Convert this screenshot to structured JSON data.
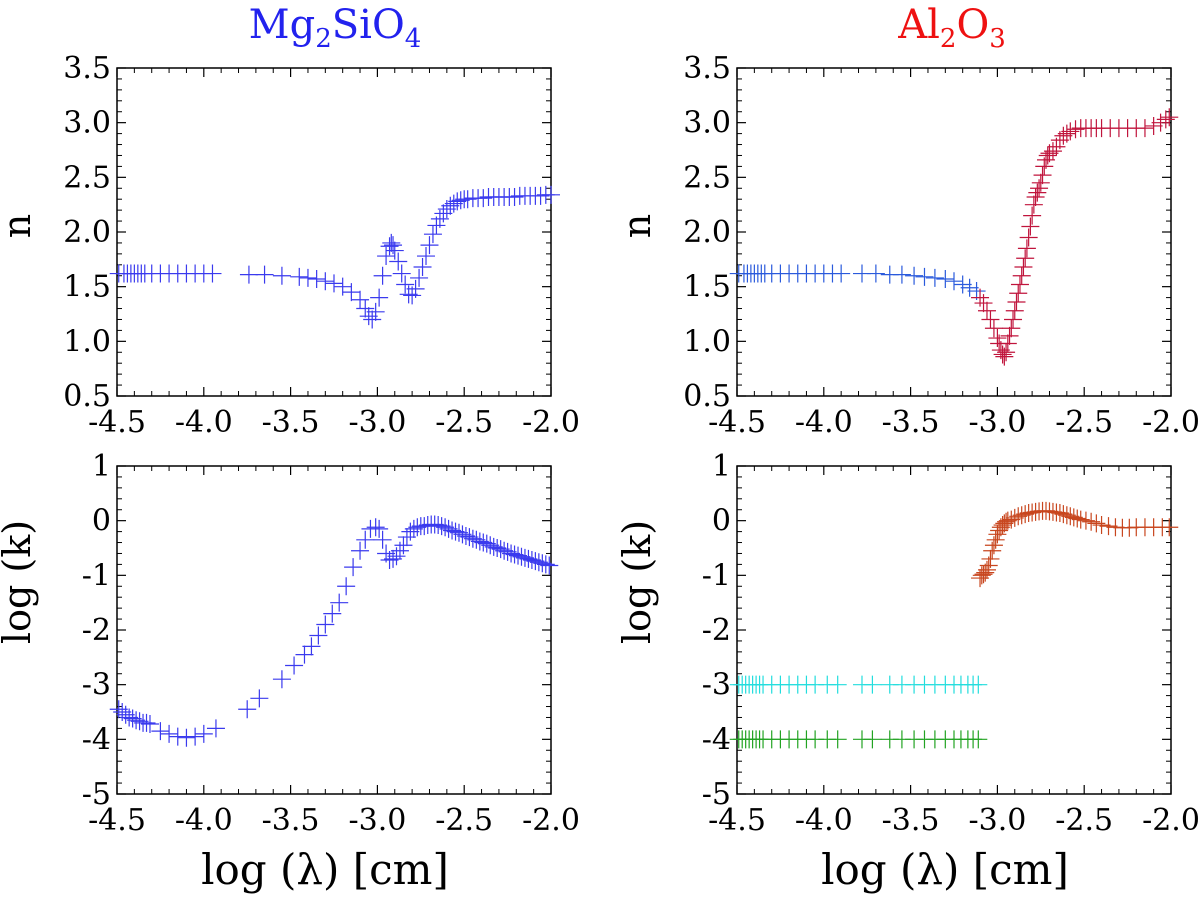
{
  "figure": {
    "xlabel": "log (λ) [cm]",
    "titles": [
      {
        "pre": "Mg",
        "sub1": "2",
        "mid": "SiO",
        "sub2": "4",
        "color": "#2222ee"
      },
      {
        "pre": "Al",
        "sub1": "2",
        "mid": "O",
        "sub2": "3",
        "color": "#ee1111"
      }
    ]
  },
  "chart_data": [
    {
      "type": "scatter",
      "id": "mg-n",
      "ylabel": "n",
      "xlim": [
        -4.5,
        -2.0
      ],
      "ylim": [
        0.5,
        3.5
      ],
      "xticks": [
        "-4.5",
        "-4.0",
        "-3.5",
        "-3.0",
        "-2.5",
        "-2.0"
      ],
      "yticks": [
        "0.5",
        "1.0",
        "1.5",
        "2.0",
        "2.5",
        "3.0",
        "3.5"
      ],
      "series": [
        {
          "name": "Mg2SiO4 n",
          "color": "#3a3aee",
          "x": [
            -4.49,
            -4.46,
            -4.44,
            -4.42,
            -4.4,
            -4.38,
            -4.36,
            -4.34,
            -4.3,
            -4.25,
            -4.2,
            -4.15,
            -4.1,
            -4.05,
            -4.0,
            -3.95,
            -3.74,
            -3.65,
            -3.55,
            -3.45,
            -3.4,
            -3.35,
            -3.3,
            -3.25,
            -3.2,
            -3.15,
            -3.1,
            -3.07,
            -3.05,
            -3.03,
            -3.01,
            -2.99,
            -2.97,
            -2.95,
            -2.93,
            -2.92,
            -2.91,
            -2.9,
            -2.88,
            -2.86,
            -2.84,
            -2.82,
            -2.8,
            -2.78,
            -2.76,
            -2.74,
            -2.72,
            -2.7,
            -2.68,
            -2.66,
            -2.64,
            -2.62,
            -2.6,
            -2.58,
            -2.56,
            -2.54,
            -2.52,
            -2.5,
            -2.48,
            -2.45,
            -2.42,
            -2.39,
            -2.36,
            -2.33,
            -2.3,
            -2.27,
            -2.24,
            -2.21,
            -2.18,
            -2.15,
            -2.12,
            -2.09,
            -2.06,
            -2.03,
            -2.0
          ],
          "y": [
            1.62,
            1.62,
            1.62,
            1.62,
            1.62,
            1.62,
            1.62,
            1.62,
            1.62,
            1.62,
            1.62,
            1.62,
            1.62,
            1.62,
            1.62,
            1.62,
            1.61,
            1.61,
            1.6,
            1.59,
            1.58,
            1.57,
            1.55,
            1.53,
            1.5,
            1.45,
            1.38,
            1.3,
            1.23,
            1.2,
            1.27,
            1.4,
            1.6,
            1.78,
            1.87,
            1.9,
            1.88,
            1.83,
            1.73,
            1.62,
            1.52,
            1.43,
            1.42,
            1.48,
            1.58,
            1.68,
            1.78,
            1.88,
            1.98,
            2.06,
            2.12,
            2.17,
            2.21,
            2.24,
            2.26,
            2.28,
            2.29,
            2.3,
            2.3,
            2.31,
            2.31,
            2.31,
            2.32,
            2.32,
            2.32,
            2.32,
            2.32,
            2.32,
            2.33,
            2.33,
            2.33,
            2.33,
            2.33,
            2.34,
            2.34
          ]
        }
      ]
    },
    {
      "type": "scatter",
      "id": "al-n",
      "ylabel": "n",
      "xlim": [
        -4.5,
        -2.0
      ],
      "ylim": [
        0.5,
        3.5
      ],
      "xticks": [
        "-4.5",
        "-4.0",
        "-3.5",
        "-3.0",
        "-2.5",
        "-2.0"
      ],
      "yticks": [
        "0.5",
        "1.0",
        "1.5",
        "2.0",
        "2.5",
        "3.0",
        "3.5"
      ],
      "series": [
        {
          "name": "Al2O3 n (long-wavelength)",
          "color": "#2a5adc",
          "x": [
            -4.49,
            -4.46,
            -4.44,
            -4.42,
            -4.4,
            -4.38,
            -4.36,
            -4.34,
            -4.3,
            -4.25,
            -4.2,
            -4.15,
            -4.1,
            -4.05,
            -4.0,
            -3.95,
            -3.9,
            -3.78,
            -3.7,
            -3.62,
            -3.55,
            -3.48,
            -3.42,
            -3.36,
            -3.3,
            -3.25,
            -3.2,
            -3.16,
            -3.12
          ],
          "y": [
            1.62,
            1.62,
            1.62,
            1.62,
            1.62,
            1.62,
            1.62,
            1.62,
            1.62,
            1.62,
            1.62,
            1.62,
            1.62,
            1.62,
            1.62,
            1.62,
            1.62,
            1.62,
            1.62,
            1.61,
            1.61,
            1.6,
            1.59,
            1.58,
            1.57,
            1.55,
            1.52,
            1.49,
            1.46
          ]
        },
        {
          "name": "Al2O3 n (IR)",
          "color": "#c0143c",
          "x": [
            -3.1,
            -3.08,
            -3.06,
            -3.04,
            -3.02,
            -3.0,
            -2.99,
            -2.98,
            -2.97,
            -2.96,
            -2.95,
            -2.94,
            -2.93,
            -2.92,
            -2.91,
            -2.9,
            -2.89,
            -2.88,
            -2.87,
            -2.86,
            -2.85,
            -2.84,
            -2.83,
            -2.82,
            -2.81,
            -2.8,
            -2.79,
            -2.78,
            -2.77,
            -2.76,
            -2.75,
            -2.74,
            -2.73,
            -2.72,
            -2.71,
            -2.7,
            -2.68,
            -2.66,
            -2.64,
            -2.62,
            -2.6,
            -2.58,
            -2.55,
            -2.52,
            -2.49,
            -2.46,
            -2.43,
            -2.4,
            -2.35,
            -2.3,
            -2.25,
            -2.2,
            -2.15,
            -2.1,
            -2.06,
            -2.03,
            -2.01
          ],
          "y": [
            1.4,
            1.35,
            1.28,
            1.2,
            1.12,
            1.03,
            0.98,
            0.92,
            0.88,
            0.86,
            0.9,
            0.98,
            1.05,
            1.12,
            1.2,
            1.28,
            1.36,
            1.44,
            1.52,
            1.6,
            1.68,
            1.76,
            1.85,
            1.95,
            2.05,
            2.15,
            2.25,
            2.32,
            2.36,
            2.4,
            2.45,
            2.52,
            2.6,
            2.66,
            2.7,
            2.72,
            2.74,
            2.78,
            2.84,
            2.88,
            2.9,
            2.92,
            2.94,
            2.95,
            2.95,
            2.95,
            2.95,
            2.95,
            2.95,
            2.95,
            2.95,
            2.95,
            2.95,
            2.97,
            3.0,
            3.03,
            3.05
          ]
        }
      ]
    },
    {
      "type": "scatter",
      "id": "mg-k",
      "ylabel": "log (k)",
      "xlim": [
        -4.5,
        -2.0
      ],
      "ylim": [
        -5,
        1
      ],
      "xticks": [
        "-4.5",
        "-4.0",
        "-3.5",
        "-3.0",
        "-2.5",
        "-2.0"
      ],
      "yticks": [
        "-5",
        "-4",
        "-3",
        "-2",
        "-1",
        "0",
        "1"
      ],
      "series": [
        {
          "name": "Mg2SiO4 log k",
          "color": "#3a3aee",
          "x": [
            -4.49,
            -4.47,
            -4.45,
            -4.43,
            -4.41,
            -4.39,
            -4.37,
            -4.35,
            -4.33,
            -4.31,
            -4.25,
            -4.2,
            -4.15,
            -4.1,
            -4.05,
            -4.0,
            -3.93,
            -3.75,
            -3.68,
            -3.55,
            -3.48,
            -3.42,
            -3.38,
            -3.34,
            -3.3,
            -3.26,
            -3.22,
            -3.18,
            -3.14,
            -3.1,
            -3.07,
            -3.04,
            -3.01,
            -2.99,
            -2.97,
            -2.95,
            -2.93,
            -2.91,
            -2.89,
            -2.87,
            -2.85,
            -2.83,
            -2.81,
            -2.79,
            -2.77,
            -2.75,
            -2.73,
            -2.71,
            -2.69,
            -2.67,
            -2.65,
            -2.63,
            -2.61,
            -2.59,
            -2.57,
            -2.55,
            -2.53,
            -2.51,
            -2.49,
            -2.47,
            -2.45,
            -2.43,
            -2.41,
            -2.39,
            -2.37,
            -2.35,
            -2.33,
            -2.31,
            -2.29,
            -2.27,
            -2.25,
            -2.23,
            -2.21,
            -2.19,
            -2.17,
            -2.15,
            -2.13,
            -2.11,
            -2.09,
            -2.07,
            -2.05,
            -2.03,
            -2.01
          ],
          "y": [
            -3.45,
            -3.5,
            -3.55,
            -3.6,
            -3.62,
            -3.65,
            -3.67,
            -3.7,
            -3.7,
            -3.72,
            -3.85,
            -3.9,
            -3.95,
            -3.97,
            -3.95,
            -3.9,
            -3.8,
            -3.45,
            -3.25,
            -2.9,
            -2.65,
            -2.45,
            -2.3,
            -2.1,
            -1.9,
            -1.7,
            -1.5,
            -1.2,
            -0.85,
            -0.55,
            -0.35,
            -0.15,
            -0.12,
            -0.15,
            -0.35,
            -0.6,
            -0.72,
            -0.7,
            -0.65,
            -0.55,
            -0.45,
            -0.3,
            -0.2,
            -0.15,
            -0.12,
            -0.1,
            -0.1,
            -0.08,
            -0.07,
            -0.07,
            -0.08,
            -0.1,
            -0.12,
            -0.15,
            -0.18,
            -0.2,
            -0.22,
            -0.25,
            -0.28,
            -0.3,
            -0.33,
            -0.35,
            -0.38,
            -0.4,
            -0.42,
            -0.45,
            -0.48,
            -0.5,
            -0.52,
            -0.55,
            -0.57,
            -0.6,
            -0.62,
            -0.64,
            -0.66,
            -0.68,
            -0.7,
            -0.72,
            -0.74,
            -0.76,
            -0.78,
            -0.8,
            -0.82
          ]
        }
      ]
    },
    {
      "type": "scatter",
      "id": "al-k",
      "ylabel": "log (k)",
      "xlim": [
        -4.5,
        -2.0
      ],
      "ylim": [
        -5,
        1
      ],
      "xticks": [
        "-4.5",
        "-4.0",
        "-3.5",
        "-3.0",
        "-2.5",
        "-2.0"
      ],
      "yticks": [
        "-5",
        "-4",
        "-3",
        "-2",
        "-1",
        "0",
        "1"
      ],
      "series": [
        {
          "name": "Al2O3 log k = -3",
          "color": "#22dddd",
          "x": [
            -4.49,
            -4.47,
            -4.45,
            -4.43,
            -4.41,
            -4.39,
            -4.37,
            -4.35,
            -4.3,
            -4.25,
            -4.2,
            -4.15,
            -4.1,
            -4.05,
            -3.98,
            -3.92,
            -3.78,
            -3.72,
            -3.62,
            -3.55,
            -3.48,
            -3.42,
            -3.36,
            -3.3,
            -3.25,
            -3.21,
            -3.17,
            -3.14,
            -3.11
          ],
          "y": [
            -3,
            -3,
            -3,
            -3,
            -3,
            -3,
            -3,
            -3,
            -3,
            -3,
            -3,
            -3,
            -3,
            -3,
            -3,
            -3,
            -3,
            -3,
            -3,
            -3,
            -3,
            -3,
            -3,
            -3,
            -3,
            -3,
            -3,
            -3,
            -3
          ]
        },
        {
          "name": "Al2O3 log k = -4",
          "color": "#22a322",
          "x": [
            -4.49,
            -4.47,
            -4.45,
            -4.43,
            -4.41,
            -4.39,
            -4.37,
            -4.35,
            -4.3,
            -4.25,
            -4.2,
            -4.15,
            -4.1,
            -4.05,
            -3.98,
            -3.92,
            -3.78,
            -3.72,
            -3.62,
            -3.55,
            -3.48,
            -3.42,
            -3.36,
            -3.3,
            -3.25,
            -3.21,
            -3.17,
            -3.14,
            -3.11
          ],
          "y": [
            -4,
            -4,
            -4,
            -4,
            -4,
            -4,
            -4,
            -4,
            -4,
            -4,
            -4,
            -4,
            -4,
            -4,
            -4,
            -4,
            -4,
            -4,
            -4,
            -4,
            -4,
            -4,
            -4,
            -4,
            -4,
            -4,
            -4,
            -4,
            -4
          ]
        },
        {
          "name": "Al2O3 log k (IR)",
          "color": "#c8461e",
          "x": [
            -3.1,
            -3.09,
            -3.08,
            -3.07,
            -3.06,
            -3.05,
            -3.04,
            -3.03,
            -3.02,
            -3.01,
            -3.0,
            -2.99,
            -2.98,
            -2.97,
            -2.96,
            -2.95,
            -2.94,
            -2.92,
            -2.9,
            -2.88,
            -2.86,
            -2.84,
            -2.82,
            -2.8,
            -2.78,
            -2.76,
            -2.74,
            -2.72,
            -2.7,
            -2.68,
            -2.66,
            -2.64,
            -2.62,
            -2.6,
            -2.58,
            -2.56,
            -2.54,
            -2.52,
            -2.49,
            -2.46,
            -2.43,
            -2.4,
            -2.36,
            -2.32,
            -2.28,
            -2.24,
            -2.2,
            -2.15,
            -2.1,
            -2.05,
            -2.01
          ],
          "y": [
            -1.05,
            -1.0,
            -0.98,
            -0.95,
            -0.9,
            -0.82,
            -0.7,
            -0.55,
            -0.45,
            -0.35,
            -0.25,
            -0.18,
            -0.12,
            -0.08,
            -0.05,
            -0.02,
            0.0,
            0.02,
            0.05,
            0.08,
            0.1,
            0.12,
            0.14,
            0.15,
            0.16,
            0.17,
            0.18,
            0.18,
            0.17,
            0.16,
            0.15,
            0.14,
            0.12,
            0.1,
            0.08,
            0.06,
            0.04,
            0.02,
            0.0,
            -0.02,
            -0.05,
            -0.08,
            -0.1,
            -0.12,
            -0.13,
            -0.13,
            -0.12,
            -0.12,
            -0.12,
            -0.12,
            -0.12
          ]
        }
      ]
    }
  ]
}
